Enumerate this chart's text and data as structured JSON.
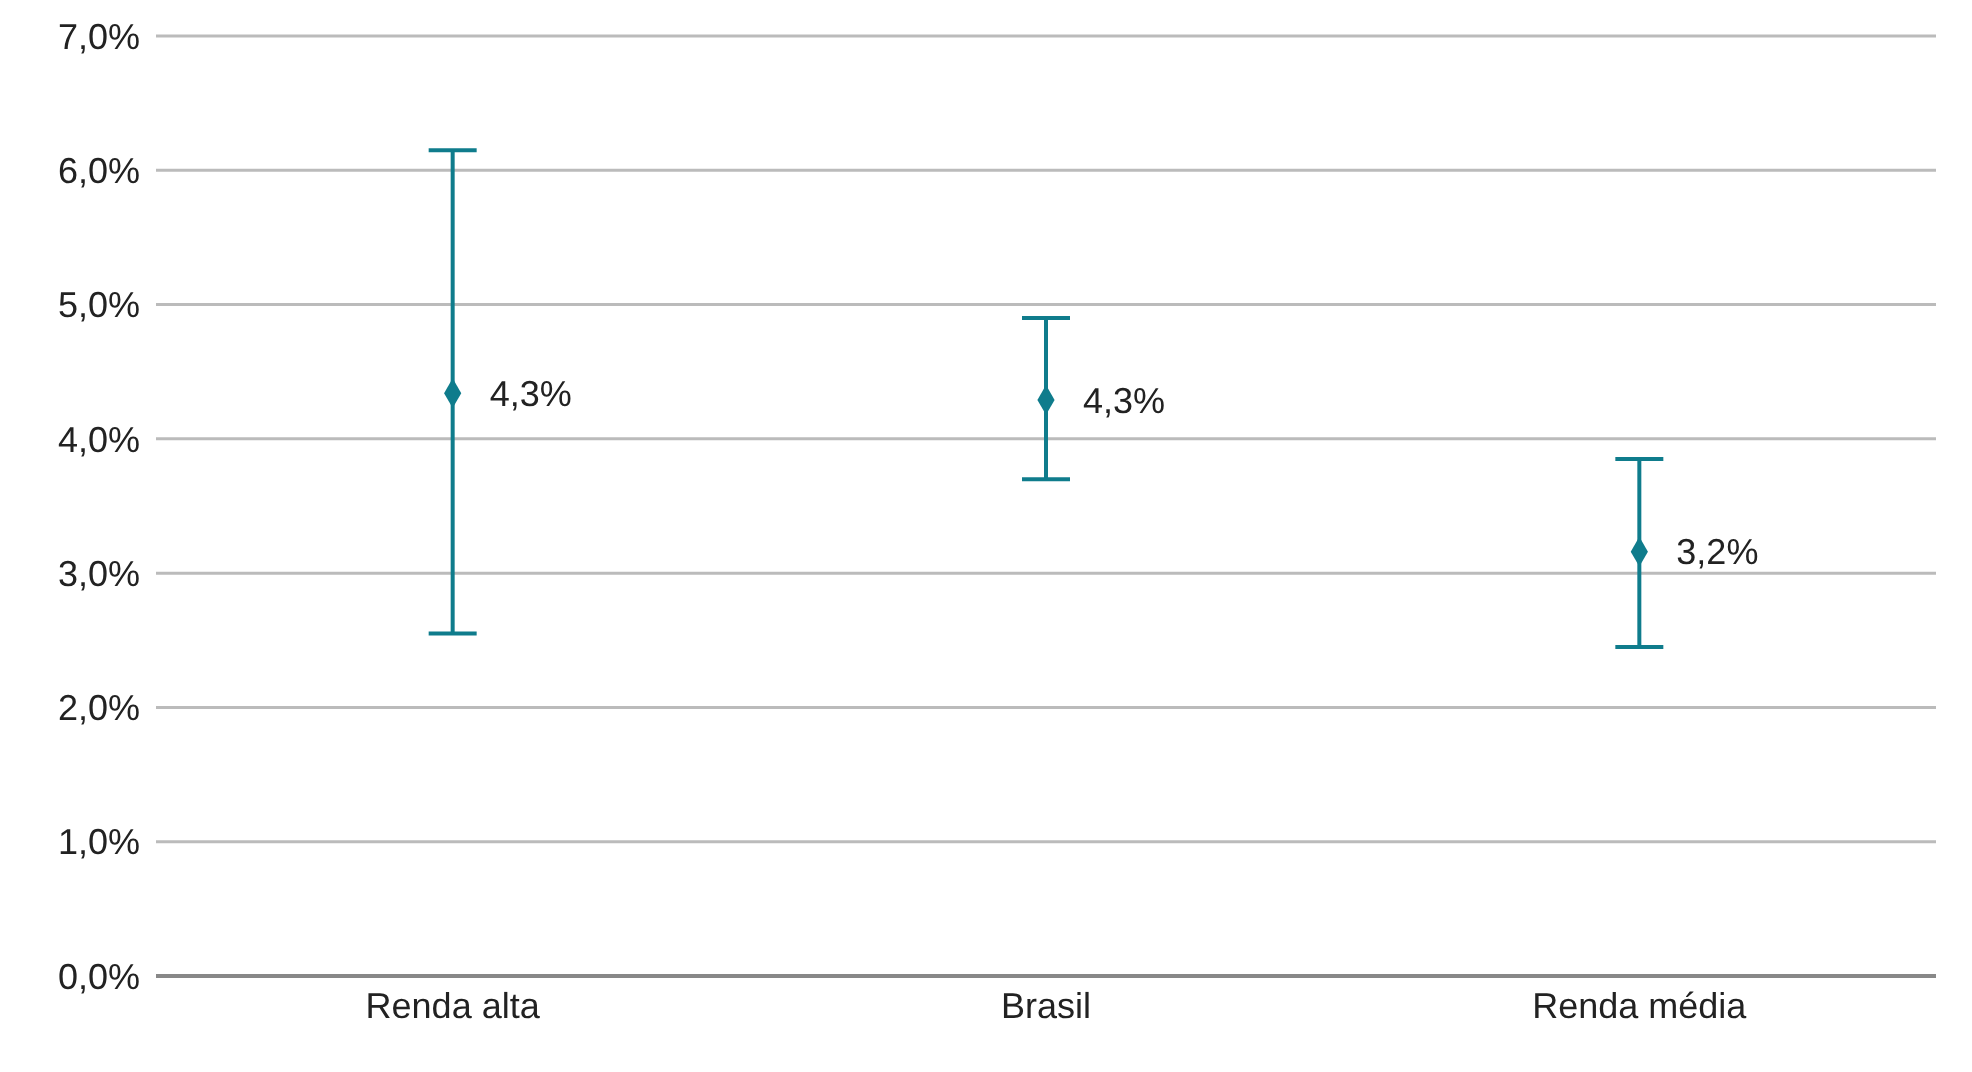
{
  "chart_data": {
    "type": "scatter",
    "categories": [
      "Renda alta",
      "Brasil",
      "Renda média"
    ],
    "values": [
      4.34,
      4.29,
      3.16
    ],
    "value_labels": [
      "4,3%",
      "4,3%",
      "3,2%"
    ],
    "errors": [
      [
        2.55,
        6.15
      ],
      [
        3.7,
        4.9
      ],
      [
        2.45,
        3.85
      ]
    ],
    "color": "#0f7c8c",
    "marker": "diamond",
    "grid": "y",
    "ylim": [
      0,
      7
    ],
    "yticks": [
      {
        "value": 0,
        "label": "0,0%"
      },
      {
        "value": 1,
        "label": "1,0%"
      },
      {
        "value": 2,
        "label": "2,0%"
      },
      {
        "value": 3,
        "label": "3,0%"
      },
      {
        "value": 4,
        "label": "4,0%"
      },
      {
        "value": 5,
        "label": "5,0%"
      },
      {
        "value": 6,
        "label": "6,0%"
      },
      {
        "value": 7,
        "label": "7,0%"
      }
    ]
  }
}
